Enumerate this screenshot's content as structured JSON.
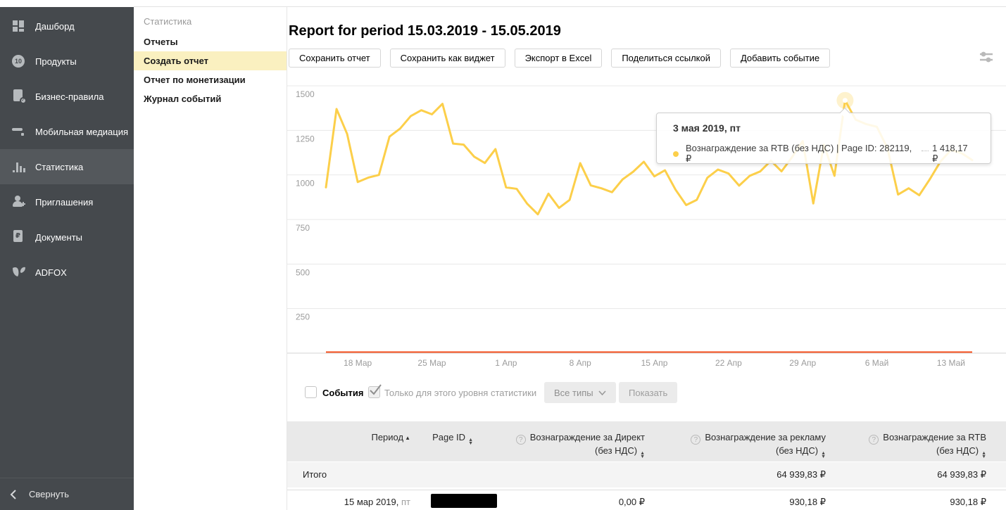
{
  "accent_colors": {
    "sidebar_bg": "#45494d",
    "active_item_bg": "#54585c",
    "menu_highlight": "#faf0c0",
    "line_yellow": "#fccf4a",
    "line_orange": "#f5501e"
  },
  "icons": {
    "sort_up": "▲",
    "sort_down": "▼",
    "help_glyph": "?",
    "check_glyph": "✓"
  },
  "sidebar": {
    "items": [
      {
        "label": "Дашборд"
      },
      {
        "label": "Продукты",
        "badge": "10"
      },
      {
        "label": "Бизнес-правила"
      },
      {
        "label": "Мобильная медиация"
      },
      {
        "label": "Статистика"
      },
      {
        "label": "Приглашения"
      },
      {
        "label": "Документы",
        "icon_letter": "₽"
      },
      {
        "label": "ADFOX"
      }
    ],
    "active_index": 4,
    "collapse_label": "Свернуть"
  },
  "submenu": {
    "title": "Статистика",
    "items": [
      {
        "label": "Отчеты"
      },
      {
        "label": "Создать отчет"
      },
      {
        "label": "Отчет по монетизации"
      },
      {
        "label": "Журнал событий"
      }
    ],
    "active_index": 1
  },
  "report": {
    "title": "Report for period 15.03.2019 - 15.05.2019",
    "actions": [
      {
        "label": "Сохранить отчет"
      },
      {
        "label": "Сохранить как виджет"
      },
      {
        "label": "Экспорт в Excel"
      },
      {
        "label": "Поделиться ссылкой"
      },
      {
        "label": "Добавить событие"
      }
    ]
  },
  "tooltip": {
    "title": "3 мая 2019, пт",
    "series_label": "Вознаграждение за RTB (без НДС) | Page ID: 282119, ₽",
    "value": "1 418,17 ₽",
    "dot_color": "#fccf4a"
  },
  "chart_data": {
    "type": "line",
    "x_start_date": "15.03.2019",
    "x_end_date": "15.05.2019",
    "x_tick_labels": [
      "18 Мар",
      "25 Мар",
      "1 Апр",
      "8 Апр",
      "15 Апр",
      "22 Апр",
      "29 Апр",
      "6 Май",
      "13 Май"
    ],
    "x_tick_days": [
      3,
      10,
      17,
      24,
      31,
      38,
      45,
      52,
      59
    ],
    "ylim": [
      0,
      1500
    ],
    "yticks": [
      250,
      500,
      750,
      1000,
      1250,
      1500
    ],
    "grid": true,
    "legend_position": "none",
    "series": [
      {
        "name": "Вознаграждение за RTB (без НДС) | Page ID: 282119, ₽",
        "color": "#fccf4a",
        "values": [
          930.18,
          1370,
          1230,
          960,
          985,
          1000,
          1215,
          1260,
          1330,
          1363,
          1340,
          1399,
          1176,
          1170,
          1102,
          1067,
          1145,
          930,
          922,
          838,
          779,
          895,
          815,
          860,
          1066,
          941,
          925,
          903,
          975,
          1018,
          1074,
          992,
          1026,
          917,
          831,
          860,
          984,
          1030,
          1008,
          940,
          995,
          1020,
          1080,
          1020,
          1100,
          1190,
          840,
          1170,
          995,
          1418.17,
          1310,
          1285,
          1270,
          1150,
          890,
          925,
          886,
          976,
          1075,
          1140,
          1122,
          1083
        ]
      },
      {
        "name": "Вознаграждение за Директ (без НДС)",
        "color": "#f5501e",
        "constant_value": 0
      }
    ],
    "highlight": {
      "day_index": 49,
      "value": 1418.17,
      "date_label": "3 мая 2019, пт"
    }
  },
  "controls": {
    "events_label": "События",
    "events_checked": false,
    "only_level_label": "Только для этого уровня статистики",
    "only_level_checked": true,
    "types_label": "Все типы",
    "show_label": "Показать"
  },
  "table": {
    "columns": [
      {
        "label": "Период",
        "sort": "asc",
        "help": false
      },
      {
        "label": "Page ID",
        "sort": "both",
        "help": false
      },
      {
        "label": "Вознаграждение за Директ",
        "sub": "(без НДС)",
        "sort": "both",
        "help": true
      },
      {
        "label": "Вознаграждение за рекламу",
        "sub": "(без НДС)",
        "sort": "both",
        "help": true
      },
      {
        "label": "Вознаграждение за RTB",
        "sub": "(без НДС)",
        "sort": "both",
        "help": true
      }
    ],
    "total_row": {
      "label": "Итого",
      "direkt": "",
      "reklama": "64 939,83 ₽",
      "rtb": "64 939,83 ₽"
    },
    "rows": [
      {
        "period": "15 мар 2019,",
        "weekday": " пт",
        "page_id_redacted": true,
        "direkt": "0,00 ₽",
        "reklama": "930,18 ₽",
        "rtb": "930,18 ₽"
      }
    ]
  }
}
